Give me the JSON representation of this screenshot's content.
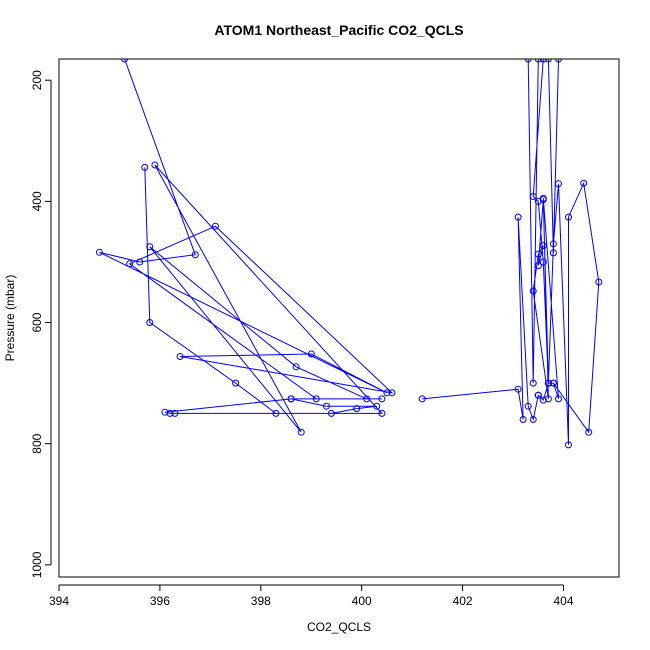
{
  "chart_data": {
    "type": "line",
    "title": "ATOM1 Northeast_Pacific CO2_QCLS",
    "xlabel": "CO2_QCLS",
    "ylabel": "Pressure (mbar)",
    "xlim": [
      394,
      405.1
    ],
    "ylim": [
      1020,
      165
    ],
    "y_reversed": true,
    "x_ticks": [
      "394",
      "396",
      "398",
      "400",
      "402",
      "404"
    ],
    "y_ticks": [
      "200",
      "400",
      "600",
      "800",
      "1000"
    ],
    "grid": false,
    "legend": "none",
    "marker": "open-circle",
    "color": "#0000ff",
    "series": [
      {
        "x": [
          395.3,
          396.7,
          395.6,
          394.8,
          400.5,
          399.0,
          396.4,
          400.6,
          397.1,
          395.4,
          399.1,
          398.6,
          400.4,
          400.1,
          398.7,
          395.8,
          398.8,
          395.9,
          400.4,
          396.3,
          396.2,
          396.1,
          398.6,
          399.3,
          400.3,
          399.9,
          399.4,
          398.3,
          397.5,
          395.8,
          395.7
        ],
        "y": [
          165,
          488,
          500,
          484,
          716,
          652,
          656,
          716,
          441,
          503,
          726,
          726,
          726,
          726,
          673,
          475,
          781,
          340,
          750,
          750,
          750,
          748,
          726,
          738,
          738,
          742,
          750,
          750,
          700,
          600,
          344
        ]
      },
      {
        "x": [
          401.2,
          403.1,
          403.2,
          403.1,
          403.3,
          403.4,
          403.5,
          403.5,
          403.5,
          403.6,
          403.7,
          403.8,
          403.9,
          403.6,
          403.7,
          403.4,
          403.5,
          403.6,
          403.5,
          403.6,
          403.7,
          403.8,
          404.5,
          404.7,
          404.4,
          404.1,
          404.1,
          403.9,
          403.8,
          403.7,
          403.6,
          403.5,
          403.4,
          403.6,
          403.9,
          403.8,
          403.7,
          403.6,
          403.5,
          403.4,
          403.3
        ],
        "y": [
          726,
          710,
          760,
          426,
          738,
          760,
          720,
          720,
          720,
          728,
          700,
          700,
          726,
          395,
          726,
          548,
          487,
          473,
          506,
          397,
          700,
          700,
          781,
          533,
          370,
          426,
          802,
          371,
          470,
          700,
          500,
          400,
          392,
          165,
          165,
          485,
          165,
          165,
          165,
          700,
          165
        ]
      }
    ]
  }
}
